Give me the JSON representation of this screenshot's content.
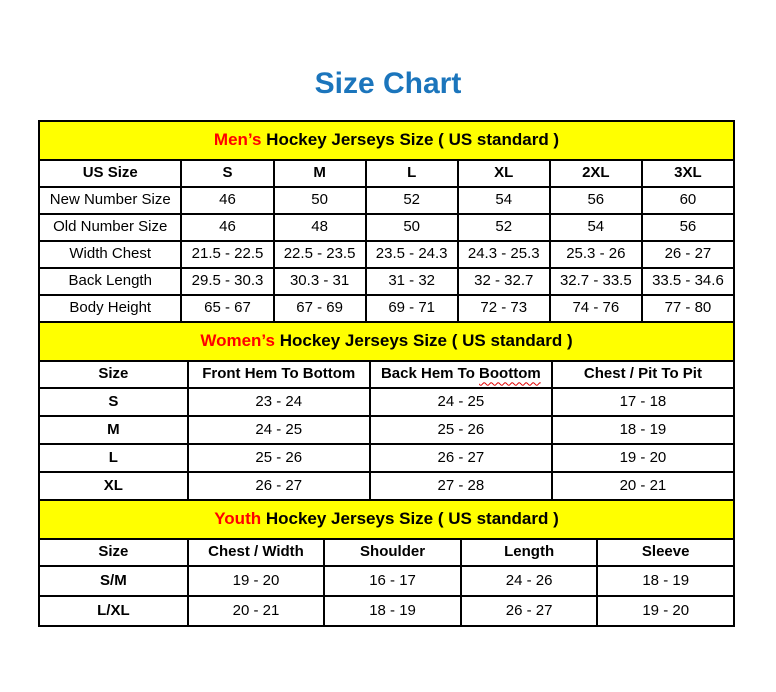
{
  "page": {
    "title": "Size Chart"
  },
  "colors": {
    "title_blue": "#1B75BC",
    "band_yellow": "#FFFF00",
    "highlight_red": "#FF0000",
    "text_black": "#000000"
  },
  "chart_data": [
    {
      "type": "table",
      "title": "Men’s Hockey Jerseys Size ( US standard )",
      "title_highlight": "Men’s",
      "title_rest": " Hockey Jerseys Size ( US standard )",
      "columns": [
        "US Size",
        "S",
        "M",
        "L",
        "XL",
        "2XL",
        "3XL"
      ],
      "rows": [
        {
          "label": "New Number Size",
          "values": [
            "46",
            "50",
            "52",
            "54",
            "56",
            "60"
          ]
        },
        {
          "label": "Old Number Size",
          "values": [
            "46",
            "48",
            "50",
            "52",
            "54",
            "56"
          ]
        },
        {
          "label": "Width Chest",
          "values": [
            "21.5 - 22.5",
            "22.5 - 23.5",
            "23.5 - 24.3",
            "24.3 - 25.3",
            "25.3 - 26",
            "26 - 27"
          ]
        },
        {
          "label": "Back Length",
          "values": [
            "29.5 - 30.3",
            "30.3 - 31",
            "31 - 32",
            "32 - 32.7",
            "32.7 - 33.5",
            "33.5 - 34.6"
          ]
        },
        {
          "label": "Body Height",
          "values": [
            "65 - 67",
            "67 - 69",
            "69 - 71",
            "72 - 73",
            "74 - 76",
            "77 - 80"
          ]
        }
      ]
    },
    {
      "type": "table",
      "title": "Women’s Hockey Jerseys Size ( US standard )",
      "title_highlight": "Women’s",
      "title_rest": " Hockey Jerseys Size ( US standard )",
      "columns": [
        "Size",
        "Front Hem To Bottom",
        "Back Hem To Boottom",
        "Chest / Pit To Pit"
      ],
      "back_hem_split": {
        "prefix": "Back Hem To ",
        "misspelled_word": "Boottom"
      },
      "rows": [
        {
          "label": "S",
          "values": [
            "23 - 24",
            "24 - 25",
            "17 - 18"
          ]
        },
        {
          "label": "M",
          "values": [
            "24 - 25",
            "25 - 26",
            "18 - 19"
          ]
        },
        {
          "label": "L",
          "values": [
            "25 - 26",
            "26 - 27",
            "19 - 20"
          ]
        },
        {
          "label": "XL",
          "values": [
            "26 - 27",
            "27 - 28",
            "20 - 21"
          ]
        }
      ]
    },
    {
      "type": "table",
      "title": "Youth Hockey Jerseys Size ( US standard )",
      "title_highlight": "Youth",
      "title_rest": " Hockey Jerseys Size ( US standard )",
      "columns": [
        "Size",
        "Chest / Width",
        "Shoulder",
        "Length",
        "Sleeve"
      ],
      "rows": [
        {
          "label": "S/M",
          "values": [
            "19 - 20",
            "16 - 17",
            "24 - 26",
            "18 - 19"
          ]
        },
        {
          "label": "L/XL",
          "values": [
            "20 - 21",
            "18 - 19",
            "26 - 27",
            "19 - 20"
          ]
        }
      ]
    }
  ]
}
